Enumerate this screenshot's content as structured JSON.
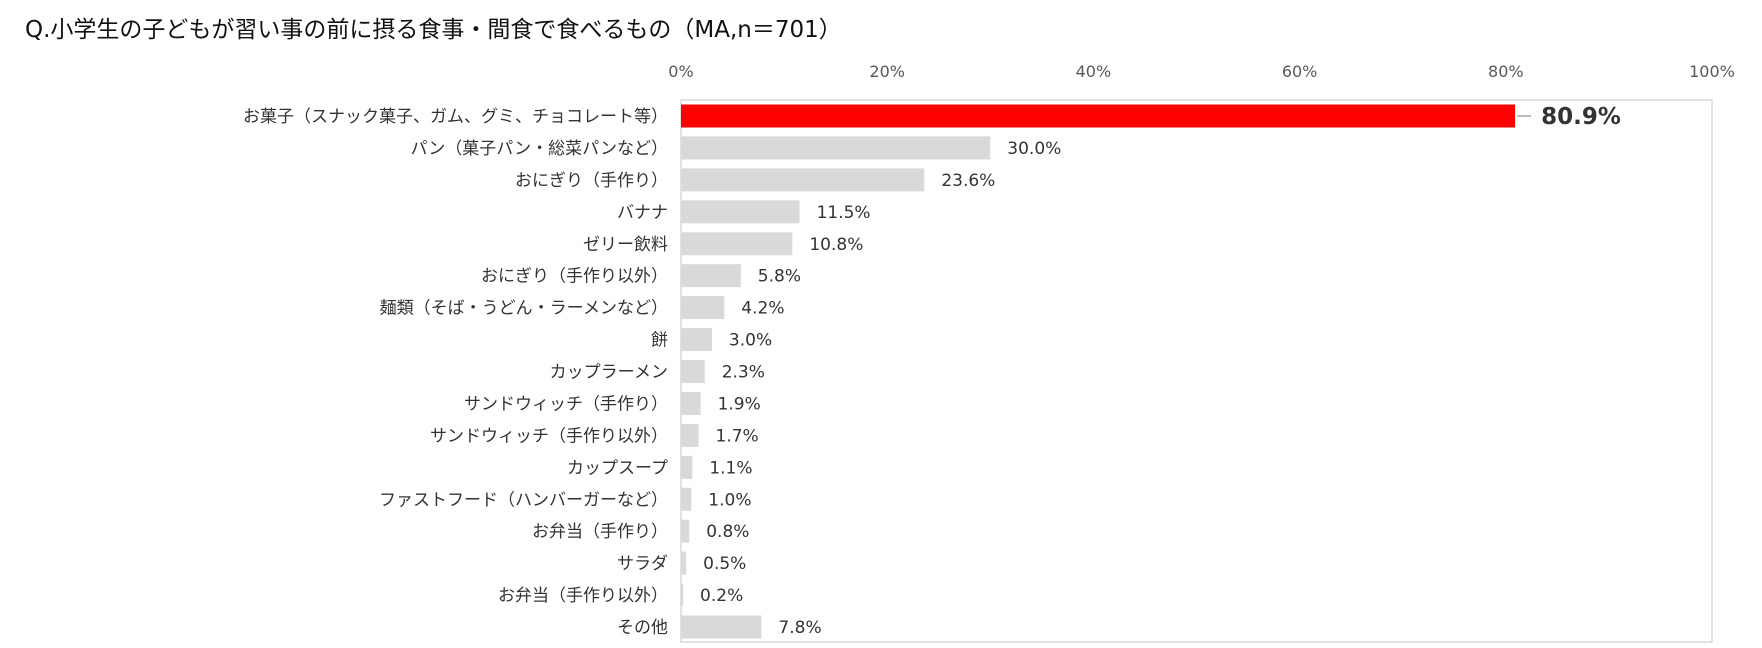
{
  "chart_data": {
    "type": "bar",
    "orientation": "horizontal",
    "title": "Q.小学生の子どもが習い事の前に摂る食事・間食で食べるもの（MA,n＝701）",
    "xlim": [
      0,
      100
    ],
    "x_ticks": [
      "0%",
      "20%",
      "40%",
      "60%",
      "80%",
      "100%"
    ],
    "x_tick_values": [
      0,
      20,
      40,
      60,
      80,
      100
    ],
    "grid": false,
    "categories": [
      "お菓子（スナック菓子、ガム、グミ、チョコレート等）",
      "パン（菓子パン・総菜パンなど）",
      "おにぎり（手作り）",
      "バナナ",
      "ゼリー飲料",
      "おにぎり（手作り以外）",
      "麺類（そば・うどん・ラーメンなど）",
      "餅",
      "カップラーメン",
      "サンドウィッチ（手作り）",
      "サンドウィッチ（手作り以外）",
      "カップスープ",
      "ファストフード（ハンバーガーなど）",
      "お弁当（手作り）",
      "サラダ",
      "お弁当（手作り以外）",
      "その他"
    ],
    "values": [
      80.9,
      30.0,
      23.6,
      11.5,
      10.8,
      5.8,
      4.2,
      3.0,
      2.3,
      1.9,
      1.7,
      1.1,
      1.0,
      0.8,
      0.5,
      0.2,
      7.8
    ],
    "value_labels": [
      "80.9%",
      "30.0%",
      "23.6%",
      "11.5%",
      "10.8%",
      "5.8%",
      "4.2%",
      "3.0%",
      "2.3%",
      "1.9%",
      "1.7%",
      "1.1%",
      "1.0%",
      "0.8%",
      "0.5%",
      "0.2%",
      "7.8%"
    ],
    "highlight_index": 0,
    "colors": {
      "highlight": "#ff0000",
      "default": "#d9d9d9",
      "frame": "#d9d9d9",
      "text": "#333333",
      "tick": "#595959"
    }
  }
}
